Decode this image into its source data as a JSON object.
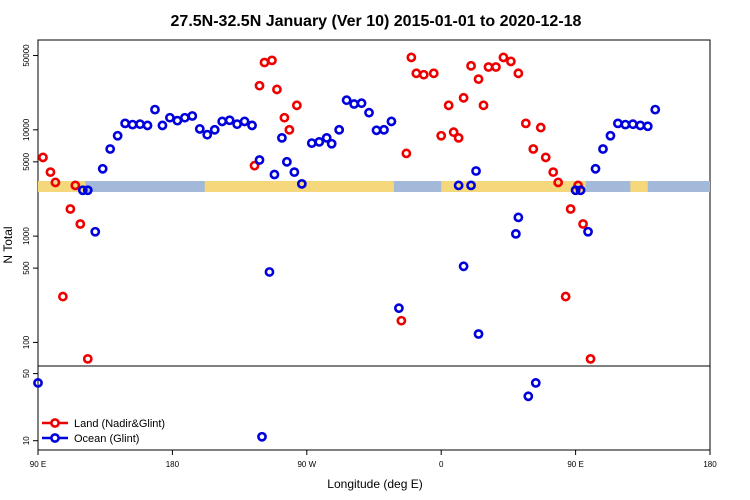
{
  "chart_data": {
    "type": "scatter",
    "title": "27.5N-32.5N January (Ver 10)   2015-01-01 to 2020-12-18",
    "xlabel": "Longitude (deg E)",
    "ylabel": "N Total",
    "xlim": [
      -90,
      180
    ],
    "x_scale": "linear",
    "x_ticks": [
      {
        "value": -90,
        "label": "90 E"
      },
      {
        "value": -36,
        "label": "180"
      },
      {
        "value": 18,
        "label": "90 W"
      },
      {
        "value": 72,
        "label": "0"
      },
      {
        "value": 126,
        "label": "90 E"
      },
      {
        "value": 180,
        "label": "180"
      }
    ],
    "upper_panel": {
      "y_scale": "log",
      "ylim": [
        60,
        70000
      ],
      "y_ticks": [
        {
          "value": 50000,
          "label": "50000"
        },
        {
          "value": 10000,
          "label": "10000"
        },
        {
          "value": 5000,
          "label": "5000"
        },
        {
          "value": 1000,
          "label": "1000"
        },
        {
          "value": 500,
          "label": "500"
        },
        {
          "value": 100,
          "label": "100"
        }
      ],
      "land_mask": {
        "y_range": [
          2600,
          3300
        ],
        "land_color": "#f5d77c",
        "ocean_color": "#a3b9d9",
        "land_lon_ranges": [
          [
            -90,
            -71
          ],
          [
            -23,
            53
          ],
          [
            72,
            130
          ],
          [
            148,
            155
          ]
        ]
      }
    },
    "lower_panel": {
      "y_scale": "log",
      "ylim": [
        8,
        60
      ],
      "y_ticks": [
        {
          "value": 50,
          "label": "50"
        },
        {
          "value": 10,
          "label": "10"
        }
      ]
    },
    "legend": {
      "position": "bottom-left"
    },
    "series": [
      {
        "name": "Land (Nadir&Glint)",
        "color": "#ee0000",
        "points": [
          [
            -88,
            5500
          ],
          [
            -85,
            4000
          ],
          [
            -83,
            3200
          ],
          [
            -80,
            270
          ],
          [
            -77,
            1800
          ],
          [
            -75,
            3000
          ],
          [
            -73,
            1300
          ],
          [
            -70,
            70
          ],
          [
            -3,
            4600
          ],
          [
            -1,
            26000
          ],
          [
            1,
            43000
          ],
          [
            4,
            45000
          ],
          [
            6,
            24000
          ],
          [
            9,
            13000
          ],
          [
            11,
            10000
          ],
          [
            14,
            17000
          ],
          [
            56,
            160
          ],
          [
            58,
            6000
          ],
          [
            60,
            48000
          ],
          [
            62,
            34000
          ],
          [
            65,
            33000
          ],
          [
            69,
            34000
          ],
          [
            72,
            8800
          ],
          [
            75,
            17000
          ],
          [
            77,
            9500
          ],
          [
            79,
            8400
          ],
          [
            81,
            20000
          ],
          [
            84,
            40000
          ],
          [
            87,
            30000
          ],
          [
            89,
            17000
          ],
          [
            91,
            39000
          ],
          [
            94,
            39000
          ],
          [
            97,
            48000
          ],
          [
            100,
            44000
          ],
          [
            103,
            34000
          ],
          [
            106,
            11500
          ],
          [
            109,
            6600
          ],
          [
            112,
            10500
          ],
          [
            114,
            5500
          ],
          [
            117,
            4000
          ],
          [
            119,
            3200
          ],
          [
            122,
            270
          ],
          [
            124,
            1800
          ],
          [
            127,
            3000
          ],
          [
            129,
            1300
          ],
          [
            132,
            70
          ]
        ]
      },
      {
        "name": "Ocean (Glint)",
        "color": "#0000dd",
        "points": [
          [
            -72,
            2700
          ],
          [
            -70,
            2700
          ],
          [
            -67,
            1100
          ],
          [
            -64,
            4300
          ],
          [
            -61,
            6600
          ],
          [
            -58,
            8800
          ],
          [
            -55,
            11500
          ],
          [
            -52,
            11200
          ],
          [
            -49,
            11300
          ],
          [
            -46,
            11000
          ],
          [
            -43,
            15500
          ],
          [
            -40,
            11000
          ],
          [
            -37,
            13000
          ],
          [
            -34,
            12200
          ],
          [
            -31,
            13000
          ],
          [
            -28,
            13500
          ],
          [
            -25,
            10200
          ],
          [
            -22,
            9000
          ],
          [
            -19,
            10000
          ],
          [
            -16,
            12000
          ],
          [
            -13,
            12300
          ],
          [
            -10,
            11300
          ],
          [
            -7,
            12000
          ],
          [
            -4,
            11000
          ],
          [
            -1,
            5200
          ],
          [
            0,
            11,
            "lower"
          ],
          [
            3,
            460
          ],
          [
            5,
            3800
          ],
          [
            8,
            8400
          ],
          [
            10,
            5000
          ],
          [
            13,
            4000
          ],
          [
            16,
            3100
          ],
          [
            20,
            7500
          ],
          [
            23,
            7700
          ],
          [
            26,
            8400
          ],
          [
            28,
            7400
          ],
          [
            31,
            10000
          ],
          [
            34,
            19000
          ],
          [
            37,
            17500
          ],
          [
            40,
            17800
          ],
          [
            43,
            14500
          ],
          [
            46,
            9900
          ],
          [
            49,
            10000
          ],
          [
            52,
            12000
          ],
          [
            55,
            210
          ],
          [
            79,
            3000
          ],
          [
            81,
            520
          ],
          [
            84,
            3000
          ],
          [
            86,
            4100
          ],
          [
            87,
            120
          ],
          [
            102,
            1050
          ],
          [
            103,
            1500
          ],
          [
            107,
            29,
            "lower"
          ],
          [
            110,
            40,
            "lower"
          ],
          [
            126,
            2700
          ],
          [
            128,
            2700
          ],
          [
            131,
            1100
          ],
          [
            134,
            4300
          ],
          [
            137,
            6600
          ],
          [
            140,
            8800
          ],
          [
            143,
            11500
          ],
          [
            146,
            11200
          ],
          [
            149,
            11300
          ],
          [
            152,
            11000
          ],
          [
            155,
            10800
          ],
          [
            158,
            15500
          ],
          [
            -90,
            40,
            "lower"
          ]
        ]
      }
    ]
  }
}
